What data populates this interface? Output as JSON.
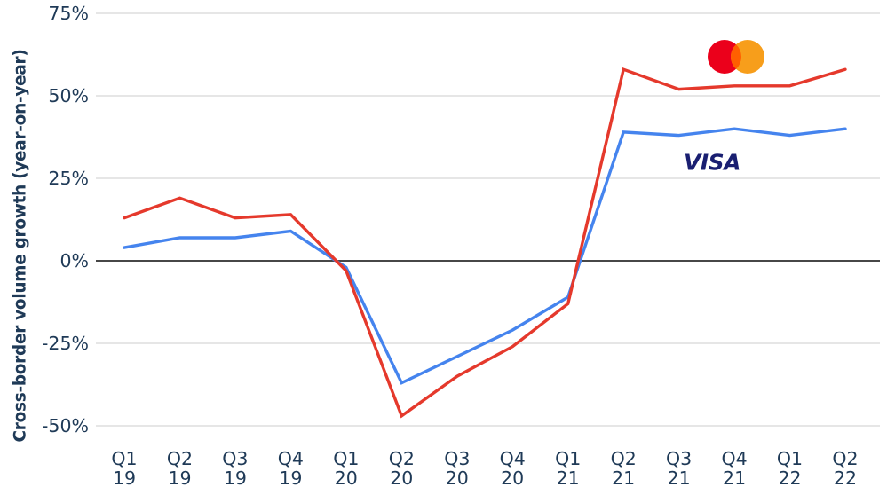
{
  "chart_data": {
    "type": "line",
    "title": "",
    "ylabel": "Cross-border volume growth (year-on-year)",
    "xlabel": "",
    "categories": [
      "Q1 19",
      "Q2 19",
      "Q3 19",
      "Q4 19",
      "Q1 20",
      "Q2 20",
      "Q3 20",
      "Q4 20",
      "Q1 21",
      "Q2 21",
      "Q3 21",
      "Q4 21",
      "Q1 22",
      "Q2 22"
    ],
    "x_tick_top": [
      "Q1",
      "Q2",
      "Q3",
      "Q4",
      "Q1",
      "Q2",
      "Q3",
      "Q4",
      "Q1",
      "Q2",
      "Q3",
      "Q4",
      "Q1",
      "Q2"
    ],
    "x_tick_bottom": [
      "19",
      "19",
      "19",
      "19",
      "20",
      "20",
      "20",
      "20",
      "21",
      "21",
      "21",
      "21",
      "22",
      "22"
    ],
    "y_ticks": [
      75,
      50,
      25,
      0,
      -25,
      -50
    ],
    "y_tick_labels": [
      "75%",
      "50%",
      "25%",
      "0%",
      "-25%",
      "-50%"
    ],
    "ylim": [
      -50,
      75
    ],
    "grid": "horizontal",
    "legend_position": "inline-brand-logos",
    "series": [
      {
        "name": "Mastercard",
        "color": "#E5392C",
        "values": [
          13,
          19,
          13,
          14,
          -3,
          -47,
          -35,
          -26,
          -13,
          58,
          52,
          53,
          53,
          58
        ]
      },
      {
        "name": "Visa",
        "color": "#4584EE",
        "values": [
          4,
          7,
          7,
          9,
          -2,
          -37,
          -29,
          -21,
          -11,
          39,
          38,
          40,
          38,
          40
        ]
      }
    ]
  },
  "logos": {
    "visa_text": "VISA",
    "visa_color": "#1A1F71",
    "mastercard": {
      "left_circle": "#EB001B",
      "right_circle": "#F79E1B",
      "overlap": "#FF5F00"
    }
  },
  "style": {
    "axis_text_color": "#1F3A57",
    "grid_color": "#D8D8D8",
    "zero_line_color": "#474747",
    "background": "#FFFFFF"
  }
}
